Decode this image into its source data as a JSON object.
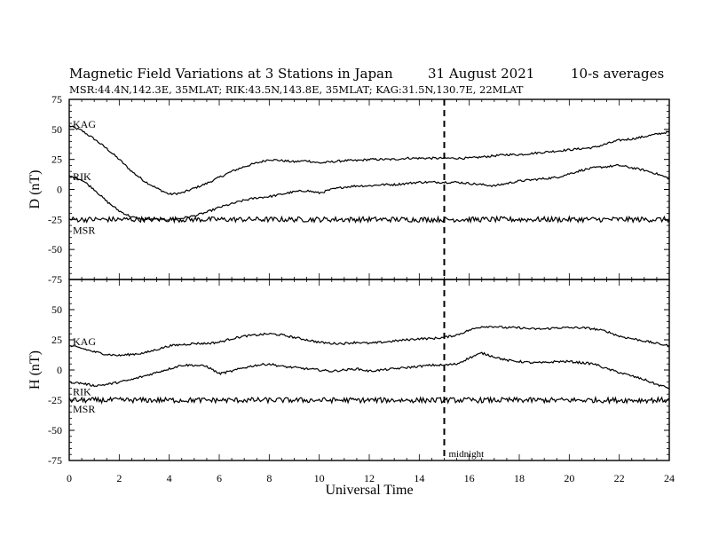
{
  "header": {
    "title": "Magnetic Field Variations at 3 Stations in Japan",
    "date": "31  August  2021",
    "averaging": "10-s averages",
    "stations_line": "MSR:44.4N,142.3E, 35MLAT;  RIK:43.5N,143.8E, 35MLAT;  KAG:31.5N,130.7E, 22MLAT"
  },
  "colors": {
    "line": "#000000",
    "background": "#ffffff"
  },
  "chart_data": [
    {
      "type": "line",
      "panel": "top",
      "ylabel": "D (nT)",
      "xlabel": "",
      "xlim": [
        0,
        24
      ],
      "ylim": [
        -75,
        75
      ],
      "yticks": [
        75,
        50,
        25,
        0,
        -25,
        -50,
        -75
      ],
      "annotation": {
        "x": 15,
        "style": "dashed"
      },
      "series": [
        {
          "name": "KAG",
          "x": [
            0,
            0.5,
            1,
            1.5,
            2,
            2.5,
            3,
            3.5,
            4,
            4.5,
            5,
            5.5,
            6,
            6.5,
            7,
            7.5,
            8,
            8.5,
            9,
            9.5,
            10,
            10.5,
            11,
            11.5,
            12,
            12.5,
            13,
            13.5,
            14,
            14.5,
            15,
            15.5,
            16,
            16.5,
            17,
            17.5,
            18,
            18.5,
            19,
            19.5,
            20,
            20.5,
            21,
            21.5,
            22,
            22.5,
            23,
            23.5,
            24
          ],
          "y": [
            53,
            49,
            42,
            34,
            25,
            15,
            7,
            1,
            -4,
            -3,
            1,
            5,
            10,
            15,
            19,
            22,
            25,
            24,
            23,
            24,
            22,
            23,
            24,
            24,
            25,
            25,
            25,
            26,
            26,
            26,
            26,
            26,
            26,
            27,
            28,
            29,
            29,
            30,
            31,
            32,
            33,
            34,
            35,
            38,
            41,
            42,
            44,
            46,
            48
          ]
        },
        {
          "name": "RIK",
          "x": [
            0,
            0.5,
            1,
            1.5,
            2,
            2.5,
            3,
            3.5,
            4,
            4.5,
            5,
            5.5,
            6,
            6.5,
            7,
            7.5,
            8,
            8.5,
            9,
            9.5,
            10,
            10.5,
            11,
            11.5,
            12,
            12.5,
            13,
            13.5,
            14,
            14.5,
            15,
            15.5,
            16,
            16.5,
            17,
            17.5,
            18,
            18.5,
            19,
            19.5,
            20,
            20.5,
            21,
            21.5,
            22,
            22.5,
            23,
            23.5,
            24
          ],
          "y": [
            11,
            8,
            0,
            -10,
            -18,
            -23,
            -25,
            -25,
            -25,
            -24,
            -22,
            -19,
            -15,
            -12,
            -9,
            -7,
            -6,
            -4,
            -2,
            -1,
            -3,
            0,
            2,
            3,
            3,
            4,
            4,
            5,
            6,
            6,
            6,
            6,
            5,
            4,
            3,
            5,
            7,
            8,
            9,
            10,
            13,
            16,
            18,
            19,
            20,
            18,
            16,
            13,
            9
          ]
        },
        {
          "name": "MSR",
          "x": [
            0,
            0.5,
            1,
            1.5,
            2,
            2.5,
            3,
            3.5,
            4,
            4.5,
            5,
            5.5,
            6,
            6.5,
            7,
            7.5,
            8,
            8.5,
            9,
            9.5,
            10,
            10.5,
            11,
            11.5,
            12,
            12.5,
            13,
            13.5,
            14,
            14.5,
            15,
            15.5,
            16,
            16.5,
            17,
            17.5,
            18,
            18.5,
            19,
            19.5,
            20,
            20.5,
            21,
            21.5,
            22,
            22.5,
            23,
            23.5,
            24
          ],
          "y": [
            -25,
            -25,
            -25,
            -25,
            -25,
            -25,
            -25,
            -25,
            -25,
            -25,
            -25,
            -25,
            -25,
            -25,
            -25,
            -25,
            -25,
            -25,
            -25,
            -25,
            -25,
            -25,
            -25,
            -25,
            -25,
            -25,
            -25,
            -25,
            -25,
            -25,
            -25,
            -25,
            -25,
            -25,
            -25,
            -25,
            -25,
            -25,
            -25,
            -25,
            -25,
            -25,
            -25,
            -25,
            -25,
            -25,
            -25,
            -25,
            -25
          ]
        }
      ]
    },
    {
      "type": "line",
      "panel": "bottom",
      "ylabel": "H (nT)",
      "xlabel": "Universal Time",
      "xlim": [
        0,
        24
      ],
      "ylim": [
        -75,
        75
      ],
      "yticks": [
        50,
        25,
        0,
        -25,
        -50,
        -75
      ],
      "xticks": [
        0,
        2,
        4,
        6,
        8,
        10,
        12,
        14,
        16,
        18,
        20,
        22,
        24
      ],
      "annotation": {
        "x": 15,
        "style": "dashed",
        "label": "midnight"
      },
      "series": [
        {
          "name": "KAG",
          "x": [
            0,
            0.5,
            1,
            1.5,
            2,
            2.5,
            3,
            3.5,
            4,
            4.5,
            5,
            5.5,
            6,
            6.5,
            7,
            7.5,
            8,
            8.5,
            9,
            9.5,
            10,
            10.5,
            11,
            11.5,
            12,
            12.5,
            13,
            13.5,
            14,
            14.5,
            15,
            15.5,
            16,
            16.5,
            17,
            17.5,
            18,
            18.5,
            19,
            19.5,
            20,
            20.5,
            21,
            21.5,
            22,
            22.5,
            23,
            23.5,
            24
          ],
          "y": [
            20,
            18,
            15,
            13,
            12,
            13,
            14,
            17,
            20,
            21,
            22,
            22,
            23,
            26,
            28,
            29,
            30,
            29,
            27,
            25,
            23,
            22,
            22,
            23,
            22,
            23,
            24,
            25,
            26,
            26,
            27,
            29,
            33,
            36,
            36,
            35,
            35,
            34,
            34,
            35,
            35,
            35,
            34,
            32,
            28,
            26,
            24,
            22,
            20
          ]
        },
        {
          "name": "RIK",
          "x": [
            0,
            0.5,
            1,
            1.5,
            2,
            2.5,
            3,
            3.5,
            4,
            4.5,
            5,
            5.5,
            6,
            6.5,
            7,
            7.5,
            8,
            8.5,
            9,
            9.5,
            10,
            10.5,
            11,
            11.5,
            12,
            12.5,
            13,
            13.5,
            14,
            14.5,
            15,
            15.5,
            16,
            16.5,
            17,
            17.5,
            18,
            18.5,
            19,
            19.5,
            20,
            20.5,
            21,
            21.5,
            22,
            22.5,
            23,
            23.5,
            24
          ],
          "y": [
            -10,
            -11,
            -13,
            -12,
            -10,
            -8,
            -5,
            -2,
            1,
            4,
            4,
            3,
            -3,
            -1,
            2,
            4,
            5,
            3,
            2,
            1,
            0,
            -1,
            0,
            1,
            -1,
            0,
            1,
            2,
            3,
            4,
            4,
            5,
            10,
            14,
            11,
            8,
            7,
            6,
            6,
            7,
            7,
            6,
            5,
            1,
            -2,
            -5,
            -8,
            -12,
            -15
          ]
        },
        {
          "name": "MSR",
          "x": [
            0,
            0.5,
            1,
            1.5,
            2,
            2.5,
            3,
            3.5,
            4,
            4.5,
            5,
            5.5,
            6,
            6.5,
            7,
            7.5,
            8,
            8.5,
            9,
            9.5,
            10,
            10.5,
            11,
            11.5,
            12,
            12.5,
            13,
            13.5,
            14,
            14.5,
            15,
            15.5,
            16,
            16.5,
            17,
            17.5,
            18,
            18.5,
            19,
            19.5,
            20,
            20.5,
            21,
            21.5,
            22,
            22.5,
            23,
            23.5,
            24
          ],
          "y": [
            -25,
            -25,
            -25,
            -25,
            -25,
            -25,
            -25,
            -25,
            -25,
            -25,
            -25,
            -25,
            -25,
            -25,
            -25,
            -25,
            -25,
            -25,
            -25,
            -25,
            -25,
            -25,
            -25,
            -25,
            -25,
            -25,
            -25,
            -25,
            -25,
            -25,
            -25,
            -25,
            -25,
            -25,
            -25,
            -25,
            -25,
            -25,
            -25,
            -25,
            -25,
            -25,
            -25,
            -25,
            -25,
            -25,
            -25,
            -25,
            -25
          ]
        }
      ]
    }
  ]
}
